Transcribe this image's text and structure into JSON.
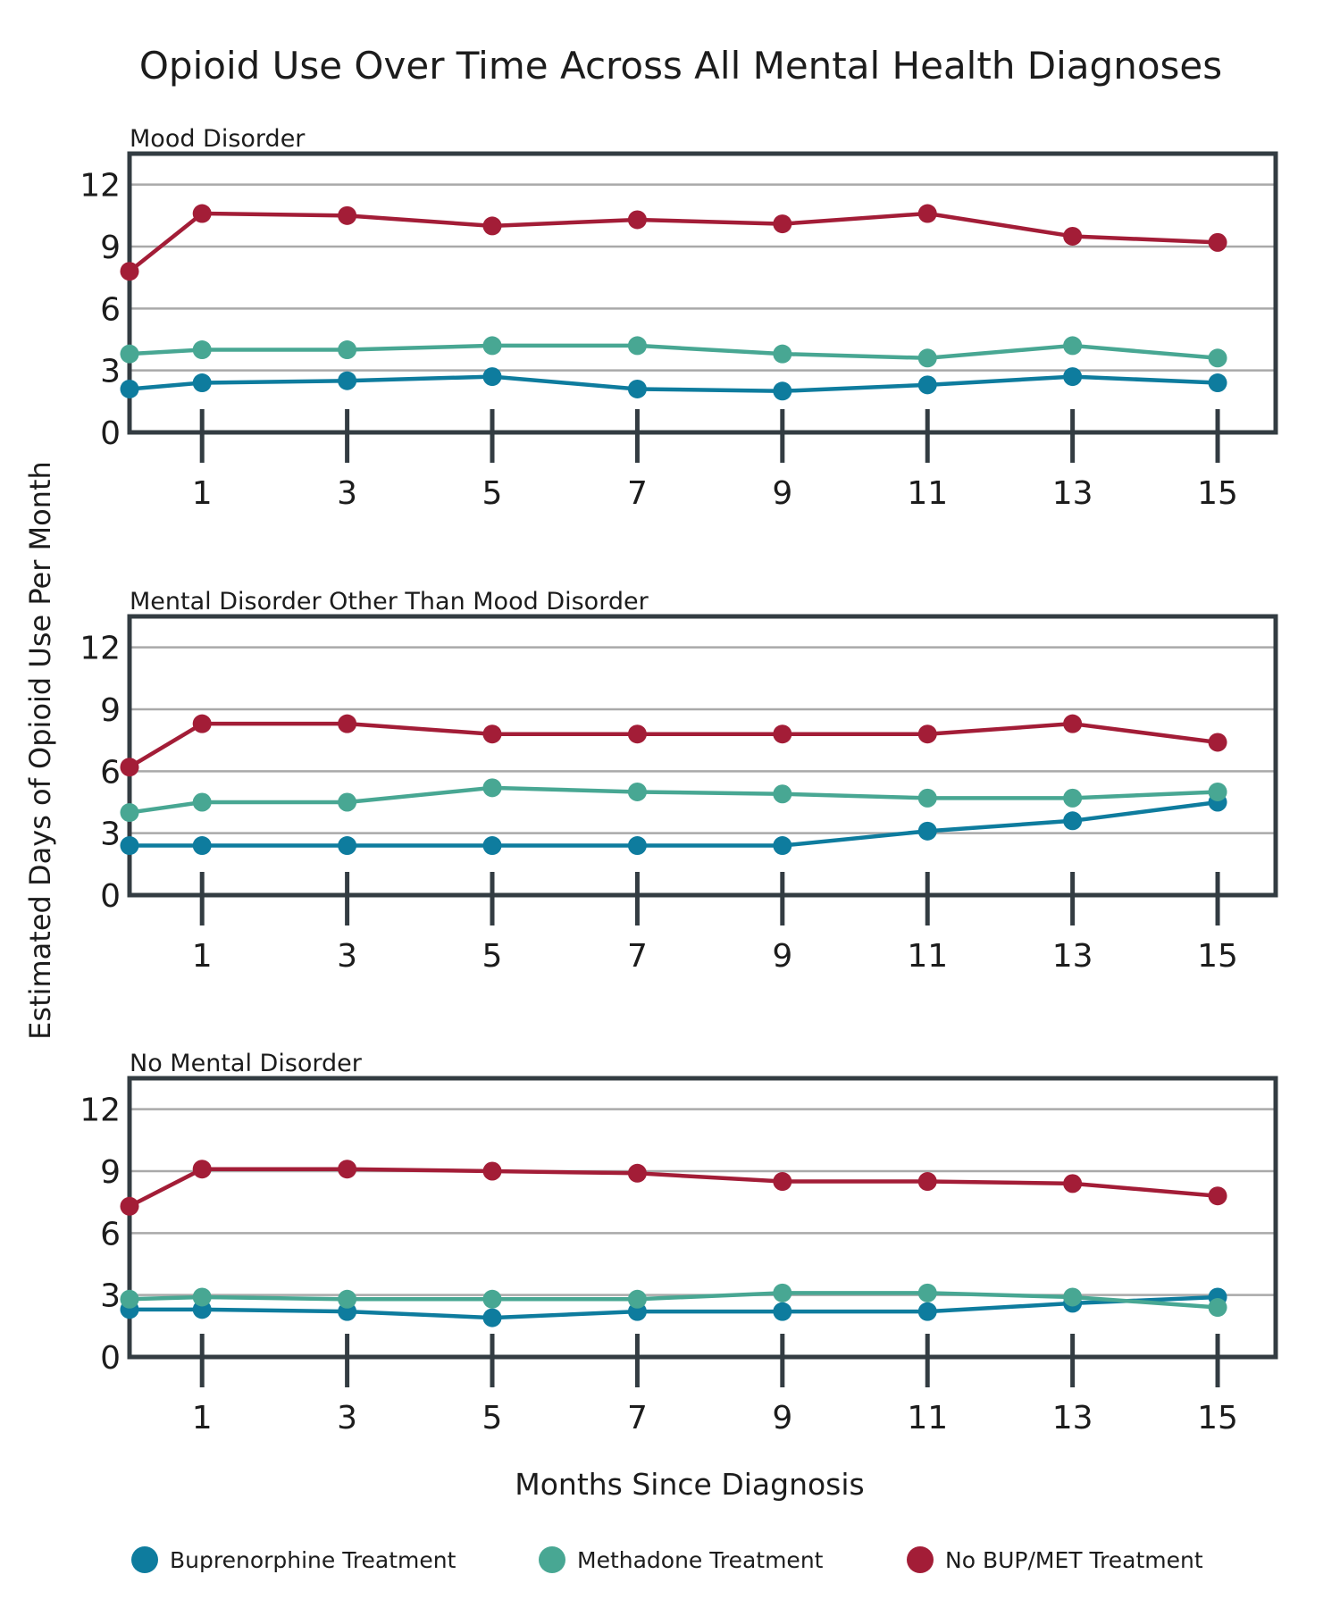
{
  "title": "Opioid Use Over Time Across All Mental Health Diagnoses",
  "xlabel": "Months Since Diagnosis",
  "ylabel": "Estimated Days of Opioid Use Per Month",
  "legend": [
    {
      "label": "Buprenorphine Treatment",
      "color": "#0e7c9e"
    },
    {
      "label": "Methadone Treatment",
      "color": "#48a793"
    },
    {
      "label": "No BUP/MET Treatment",
      "color": "#a31d37"
    }
  ],
  "chart_data": [
    {
      "type": "line",
      "title": "Mood Disorder",
      "x": [
        0,
        1,
        3,
        5,
        7,
        9,
        11,
        13,
        15
      ],
      "xticks": [
        1,
        3,
        5,
        7,
        9,
        11,
        13,
        15
      ],
      "yticks": [
        0,
        3,
        6,
        9,
        12
      ],
      "ylim": [
        0,
        13.5
      ],
      "xlim": [
        0,
        15.8
      ],
      "grid": true,
      "legend_position": "bottom",
      "series": [
        {
          "name": "Buprenorphine Treatment",
          "color": "#0e7c9e",
          "values": [
            2.1,
            2.4,
            2.5,
            2.7,
            2.1,
            2.0,
            2.3,
            2.7,
            2.4
          ]
        },
        {
          "name": "Methadone Treatment",
          "color": "#48a793",
          "values": [
            3.8,
            4.0,
            4.0,
            4.2,
            4.2,
            3.8,
            3.6,
            4.2,
            3.6
          ]
        },
        {
          "name": "No BUP/MET Treatment",
          "color": "#a31d37",
          "values": [
            7.8,
            10.6,
            10.5,
            10.0,
            10.3,
            10.1,
            10.6,
            9.5,
            9.2
          ]
        }
      ]
    },
    {
      "type": "line",
      "title": "Mental Disorder Other Than Mood Disorder",
      "x": [
        0,
        1,
        3,
        5,
        7,
        9,
        11,
        13,
        15
      ],
      "xticks": [
        1,
        3,
        5,
        7,
        9,
        11,
        13,
        15
      ],
      "yticks": [
        0,
        3,
        6,
        9,
        12
      ],
      "ylim": [
        0,
        13.5
      ],
      "xlim": [
        0,
        15.8
      ],
      "grid": true,
      "legend_position": "bottom",
      "series": [
        {
          "name": "Buprenorphine Treatment",
          "color": "#0e7c9e",
          "values": [
            2.4,
            2.4,
            2.4,
            2.4,
            2.4,
            2.4,
            3.1,
            3.6,
            4.5
          ]
        },
        {
          "name": "Methadone Treatment",
          "color": "#48a793",
          "values": [
            4.0,
            4.5,
            4.5,
            5.2,
            5.0,
            4.9,
            4.7,
            4.7,
            5.0
          ]
        },
        {
          "name": "No BUP/MET Treatment",
          "color": "#a31d37",
          "values": [
            6.2,
            8.3,
            8.3,
            7.8,
            7.8,
            7.8,
            7.8,
            8.3,
            7.4
          ]
        }
      ]
    },
    {
      "type": "line",
      "title": "No Mental Disorder",
      "x": [
        0,
        1,
        3,
        5,
        7,
        9,
        11,
        13,
        15
      ],
      "xticks": [
        1,
        3,
        5,
        7,
        9,
        11,
        13,
        15
      ],
      "yticks": [
        0,
        3,
        6,
        9,
        12
      ],
      "ylim": [
        0,
        13.5
      ],
      "xlim": [
        0,
        15.8
      ],
      "grid": true,
      "legend_position": "bottom",
      "series": [
        {
          "name": "Buprenorphine Treatment",
          "color": "#0e7c9e",
          "values": [
            2.3,
            2.3,
            2.2,
            1.9,
            2.2,
            2.2,
            2.2,
            2.6,
            2.9
          ]
        },
        {
          "name": "Methadone Treatment",
          "color": "#48a793",
          "values": [
            2.8,
            2.9,
            2.8,
            2.8,
            2.8,
            3.1,
            3.1,
            2.9,
            2.4
          ]
        },
        {
          "name": "No BUP/MET Treatment",
          "color": "#a31d37",
          "values": [
            7.3,
            9.1,
            9.1,
            9.0,
            8.9,
            8.5,
            8.5,
            8.4,
            7.8
          ]
        }
      ]
    }
  ]
}
